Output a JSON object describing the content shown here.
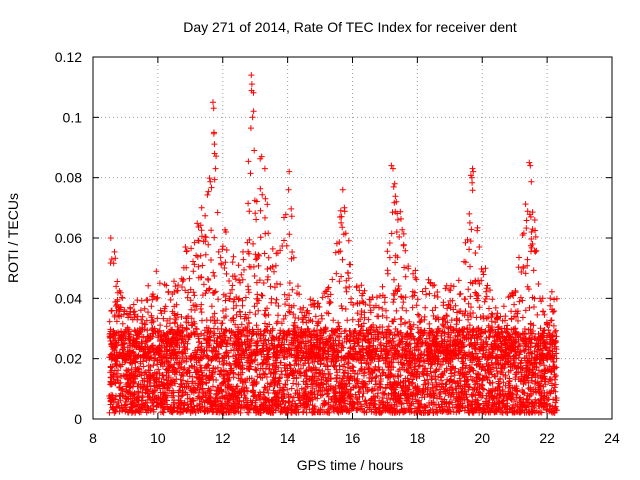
{
  "chart_data": {
    "type": "scatter",
    "title": "Day 271 of 2014, Rate Of TEC Index for receiver dent",
    "xlabel": "GPS time / hours",
    "ylabel": "ROTI / TECUs",
    "xlim": [
      8,
      24
    ],
    "ylim": [
      0,
      0.12
    ],
    "xticks": [
      8,
      10,
      12,
      14,
      16,
      18,
      20,
      22,
      24
    ],
    "yticks": [
      0,
      0.02,
      0.04,
      0.06,
      0.08,
      0.1,
      0.12
    ],
    "xtick_labels": [
      "8",
      "10",
      "12",
      "14",
      "16",
      "18",
      "20",
      "22",
      "24"
    ],
    "ytick_labels": [
      "0",
      "0.02",
      "0.04",
      "0.06",
      "0.08",
      "0.1",
      "0.12"
    ],
    "grid": true,
    "marker": "+",
    "color": "#ff0000",
    "x_data_range": [
      8.5,
      22.3
    ],
    "baseline_range": [
      0.002,
      0.03
    ],
    "envelope": [
      [
        8.5,
        0.049
      ],
      [
        8.6,
        0.06
      ],
      [
        9.0,
        0.035
      ],
      [
        9.5,
        0.042
      ],
      [
        10.0,
        0.049
      ],
      [
        10.5,
        0.046
      ],
      [
        10.9,
        0.057
      ],
      [
        11.4,
        0.07
      ],
      [
        11.75,
        0.105
      ],
      [
        12.0,
        0.065
      ],
      [
        12.3,
        0.055
      ],
      [
        12.6,
        0.052
      ],
      [
        12.9,
        0.114
      ],
      [
        13.2,
        0.087
      ],
      [
        13.6,
        0.052
      ],
      [
        14.0,
        0.082
      ],
      [
        14.4,
        0.04
      ],
      [
        15.0,
        0.04
      ],
      [
        15.3,
        0.045
      ],
      [
        15.7,
        0.076
      ],
      [
        16.0,
        0.05
      ],
      [
        16.5,
        0.04
      ],
      [
        17.0,
        0.045
      ],
      [
        17.25,
        0.084
      ],
      [
        17.5,
        0.072
      ],
      [
        17.7,
        0.055
      ],
      [
        18.0,
        0.05
      ],
      [
        18.5,
        0.045
      ],
      [
        19.0,
        0.045
      ],
      [
        19.4,
        0.05
      ],
      [
        19.65,
        0.083
      ],
      [
        20.0,
        0.05
      ],
      [
        20.5,
        0.035
      ],
      [
        21.0,
        0.044
      ],
      [
        21.5,
        0.085
      ],
      [
        21.8,
        0.04
      ],
      [
        22.3,
        0.044
      ]
    ],
    "spikes": [
      [
        8.55,
        0.06
      ],
      [
        8.58,
        0.053
      ],
      [
        11.35,
        0.07
      ],
      [
        11.7,
        0.105
      ],
      [
        11.72,
        0.103
      ],
      [
        11.73,
        0.095
      ],
      [
        11.75,
        0.088
      ],
      [
        11.78,
        0.083
      ],
      [
        12.88,
        0.114
      ],
      [
        12.9,
        0.111
      ],
      [
        12.95,
        0.102
      ],
      [
        12.92,
        0.1
      ],
      [
        12.97,
        0.089
      ],
      [
        13.2,
        0.087
      ],
      [
        13.3,
        0.083
      ],
      [
        14.05,
        0.082
      ],
      [
        14.03,
        0.076
      ],
      [
        15.7,
        0.076
      ],
      [
        15.75,
        0.07
      ],
      [
        15.65,
        0.065
      ],
      [
        17.2,
        0.084
      ],
      [
        17.25,
        0.083
      ],
      [
        17.3,
        0.078
      ],
      [
        17.35,
        0.072
      ],
      [
        17.4,
        0.066
      ],
      [
        19.6,
        0.068
      ],
      [
        19.62,
        0.065
      ],
      [
        19.7,
        0.083
      ],
      [
        19.72,
        0.082
      ],
      [
        19.68,
        0.08
      ],
      [
        21.45,
        0.085
      ],
      [
        21.48,
        0.084
      ],
      [
        21.5,
        0.067
      ],
      [
        21.52,
        0.062
      ],
      [
        21.55,
        0.058
      ],
      [
        20.1,
        0.05
      ],
      [
        9.95,
        0.049
      ],
      [
        10.85,
        0.057
      ],
      [
        12.1,
        0.062
      ],
      [
        13.7,
        0.055
      ]
    ]
  }
}
